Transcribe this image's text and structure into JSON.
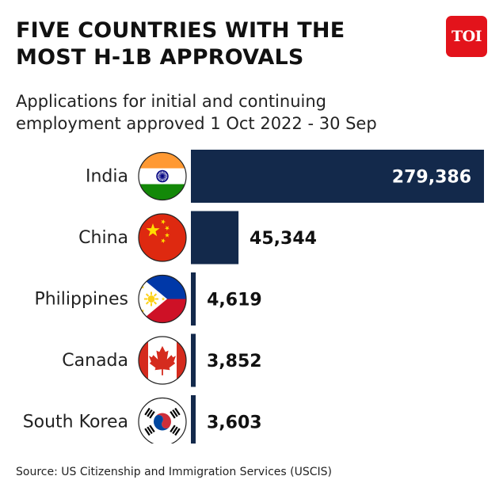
{
  "header": {
    "title": "FIVE COUNTRIES WITH THE\nMOST H-1B APPROVALS",
    "subtitle": "Applications for initial and continuing\nemployment approved 1 Oct 2022 - 30 Sep",
    "logo_text": "TOI"
  },
  "footer": {
    "source": "Source: US Citizenship and Immigration Services (USCIS)"
  },
  "colors": {
    "bar": "#13294b",
    "logo": "#e3131b"
  },
  "chart_data": {
    "type": "bar",
    "orientation": "horizontal",
    "categories": [
      "India",
      "China",
      "Philippines",
      "Canada",
      "South Korea"
    ],
    "values": [
      279386,
      45344,
      4619,
      3852,
      3603
    ],
    "value_labels": [
      "279,386",
      "45,344",
      "4,619",
      "3,852",
      "3,603"
    ],
    "flag_icons": [
      "india-flag-icon",
      "china-flag-icon",
      "philippines-flag-icon",
      "canada-flag-icon",
      "south-korea-flag-icon"
    ],
    "xlim": [
      0,
      279386
    ],
    "grid": false,
    "legend": "none"
  }
}
